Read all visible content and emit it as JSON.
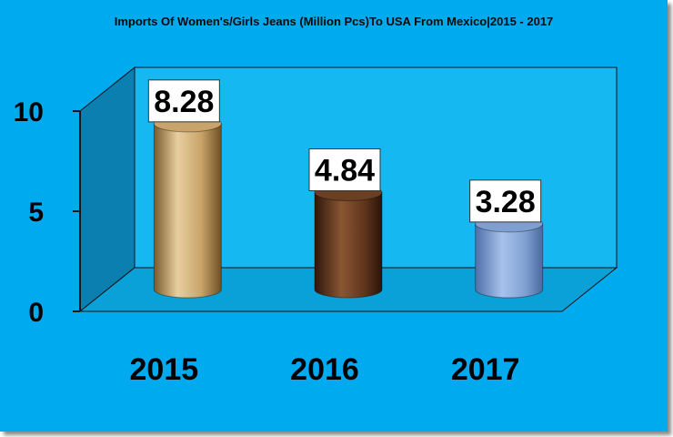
{
  "title": "Imports Of Women's/Girls Jeans (Million Pcs)To USA From Mexico|2015 - 2017",
  "chart_data": {
    "type": "bar",
    "title": "Imports Of Women's/Girls Jeans (Million Pcs)To USA From Mexico|2015 - 2017",
    "categories": [
      "2015",
      "2016",
      "2017"
    ],
    "values": [
      8.28,
      4.84,
      3.28
    ],
    "data_labels": [
      "8.28",
      "4.84",
      "3.28"
    ],
    "yticks": [
      "0",
      "5",
      "10"
    ],
    "ylim": [
      0,
      10
    ],
    "grid": false,
    "legend": "none",
    "colors": {
      "background": "#00aaee",
      "wall": "#16b8f2",
      "side_wall": "#0a7fb0",
      "floor": "#0aa0d8",
      "bars": [
        "#c9a46a",
        "#6b3f22",
        "#7f9fd0"
      ]
    }
  }
}
